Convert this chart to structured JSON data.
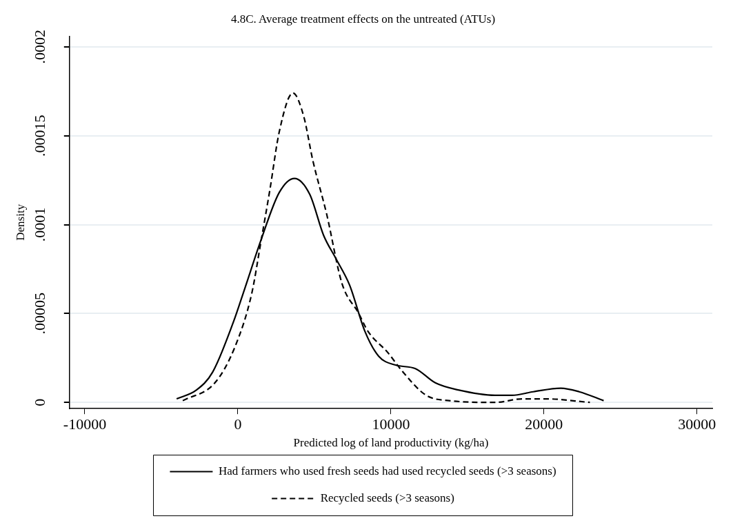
{
  "chart_data": {
    "type": "line",
    "title": "4.8C. Average treatment effects on the untreated (ATUs)",
    "xlabel": "Predicted log of land productivity (kg/ha)",
    "ylabel": "Density",
    "xlim": [
      -11000,
      31000
    ],
    "xticks": [
      -10000,
      0,
      10000,
      20000,
      30000
    ],
    "ylim": [
      -3.5e-06,
      0.000206
    ],
    "yticks": [
      0,
      {
        "value": 5e-05,
        "label": ".00005"
      },
      {
        "value": 0.0001,
        "label": ".0001"
      },
      {
        "value": 0.00015,
        "label": ".00015"
      },
      {
        "value": 0.0002,
        "label": ".0002"
      }
    ],
    "grid": "y",
    "legend": "bottom",
    "marker": "none",
    "series": [
      {
        "name": "Had farmers who used fresh seeds had used recycled seeds (>3 seasons)",
        "color": "#000000",
        "line_style": "solid",
        "x": [
          -4000,
          -2700,
          -1650,
          -300,
          450,
          1500,
          2700,
          3700,
          4700,
          5600,
          6400,
          7300,
          8300,
          9200,
          10300,
          11600,
          12900,
          14400,
          16800,
          17900,
          19300,
          21100,
          22300,
          23900
        ],
        "values": [
          2e-06,
          7e-06,
          1.7e-05,
          4.5e-05,
          6.4e-05,
          9.1e-05,
          0.000118,
          0.000126,
          0.000117,
          9.4e-05,
          8.1e-05,
          6.6e-05,
          4e-05,
          2.6e-05,
          2.1e-05,
          1.9e-05,
          1.1e-05,
          7e-06,
          4e-06,
          4e-06,
          6e-06,
          8e-06,
          6e-06,
          1e-06
        ]
      },
      {
        "name": "Recycled seeds (>3 seasons)",
        "color": "#000000",
        "line_style": "dashed",
        "x": [
          -3600,
          -1500,
          -200,
          900,
          1500,
          2100,
          2700,
          3600,
          4300,
          4900,
          5800,
          6800,
          7900,
          8500,
          9800,
          10700,
          12300,
          13800,
          16800,
          18600,
          20100,
          23000
        ],
        "values": [
          1e-06,
          1.1e-05,
          3.1e-05,
          6.1e-05,
          9e-05,
          0.00012,
          0.000152,
          0.000174,
          0.000161,
          0.000136,
          0.000106,
          6.7e-05,
          5e-05,
          4e-05,
          2.8e-05,
          1.8e-05,
          4e-06,
          1e-06,
          0,
          2e-06,
          2e-06,
          0
        ]
      }
    ]
  }
}
